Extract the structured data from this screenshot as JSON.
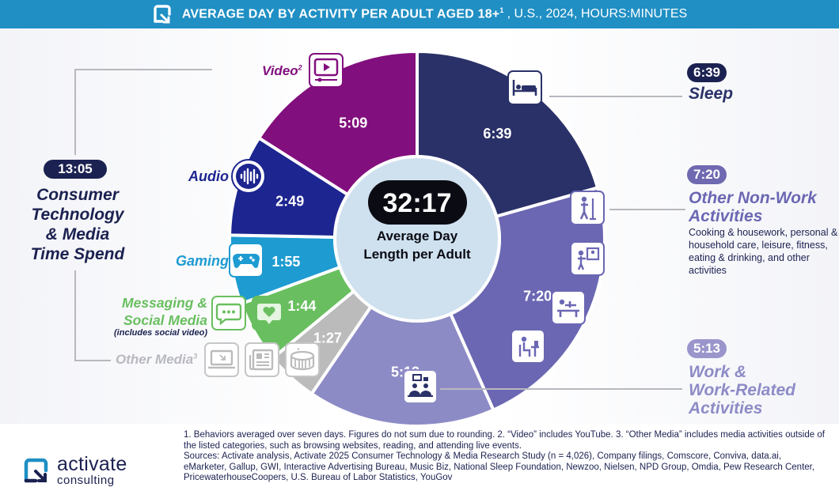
{
  "header": {
    "title_bold": "AVERAGE DAY BY ACTIVITY PER ADULT AGED 18+",
    "title_sup": "1",
    "title_rest": ", U.S., 2024, HOURS:MINUTES"
  },
  "center": {
    "total": "32:17",
    "caption_line1": "Average Day",
    "caption_line2": "Length per Adult"
  },
  "consumer_tech": {
    "total": "13:05",
    "label_line1": "Consumer",
    "label_line2": "Technology",
    "label_line3": "& Media",
    "label_line4": "Time Spend"
  },
  "category_labels": {
    "video": "Video",
    "video_sup": "2",
    "audio": "Audio",
    "gaming": "Gaming",
    "messaging_line1": "Messaging &",
    "messaging_line2": "Social Media",
    "messaging_note": "(includes social video)",
    "other_media": "Other Media",
    "other_media_sup": "3"
  },
  "right_labels": {
    "sleep_value": "6:39",
    "sleep_label": "Sleep",
    "nonwork_value": "7:20",
    "nonwork_line1": "Other Non-Work",
    "nonwork_line2": "Activities",
    "nonwork_desc": "Cooking & housework, personal & household care, leisure, fitness, eating & drinking, and other activities",
    "work_value": "5:13",
    "work_line1": "Work &",
    "work_line2": "Work-Related",
    "work_line3": "Activities"
  },
  "colors": {
    "header": "#1f8fc4",
    "navy": "#1b2150",
    "center": "#cfe1ef"
  },
  "icons": {
    "sleep": "bed-icon",
    "nonwork": [
      "housework-icon",
      "care-icon",
      "fitness-icon",
      "desk-icon"
    ],
    "work": "meeting-icon",
    "video": "video-player-icon",
    "audio": "sound-wave-icon",
    "gaming": "game-controller-icon",
    "messaging": [
      "chat-bubble-icon",
      "heart-bubble-icon"
    ],
    "other_media": [
      "laptop-icon",
      "newspaper-icon",
      "stadium-icon"
    ]
  },
  "chart_data": {
    "type": "pie",
    "title": "Average Day by Activity per Adult Aged 18+, U.S., 2024, Hours:Minutes",
    "unit": "hours:minutes",
    "total_label": "32:17",
    "start_angle_deg": 0,
    "slices": [
      {
        "key": "sleep",
        "name": "Sleep",
        "label": "6:39",
        "minutes": 399,
        "color": "#2a3168"
      },
      {
        "key": "nonwork",
        "name": "Other Non-Work Activities",
        "label": "7:20",
        "minutes": 440,
        "color": "#6b67b3"
      },
      {
        "key": "work",
        "name": "Work & Work-Related Activities",
        "label": "5:13",
        "minutes": 313,
        "color": "#8d8bc6"
      },
      {
        "key": "other_media",
        "name": "Other Media",
        "label": "1:27",
        "minutes": 87,
        "color": "#bbbbbb"
      },
      {
        "key": "messaging",
        "name": "Messaging & Social Media",
        "label": "1:44",
        "minutes": 104,
        "color": "#69bf5f"
      },
      {
        "key": "gaming",
        "name": "Gaming",
        "label": "1:55",
        "minutes": 115,
        "color": "#1e9bd1"
      },
      {
        "key": "audio",
        "name": "Audio",
        "label": "2:49",
        "minutes": 169,
        "color": "#1d2590"
      },
      {
        "key": "video",
        "name": "Video",
        "label": "5:09",
        "minutes": 309,
        "color": "#820f7e"
      }
    ]
  },
  "footnotes": {
    "line1": "1. Behaviors averaged over seven days. Figures do not sum due to rounding.  2. “Video” includes YouTube.  3. “Other Media” includes media activities outside of the listed categories, such as browsing websites, reading, and attending live events.",
    "line2": "Sources: Activate analysis, Activate 2025 Consumer Technology & Media Research Study (n = 4,026), Company filings, Comscore, Conviva, data.ai, eMarketer, Gallup, GWI, Interactive Advertising Bureau, Music Biz, National Sleep Foundation, Newzoo, Nielsen, NPD Group, Omdia, Pew Research Center, PricewaterhouseCoopers, U.S. Bureau of Labor Statistics, YouGov"
  },
  "brand": {
    "name": "activate",
    "sub": "consulting"
  }
}
